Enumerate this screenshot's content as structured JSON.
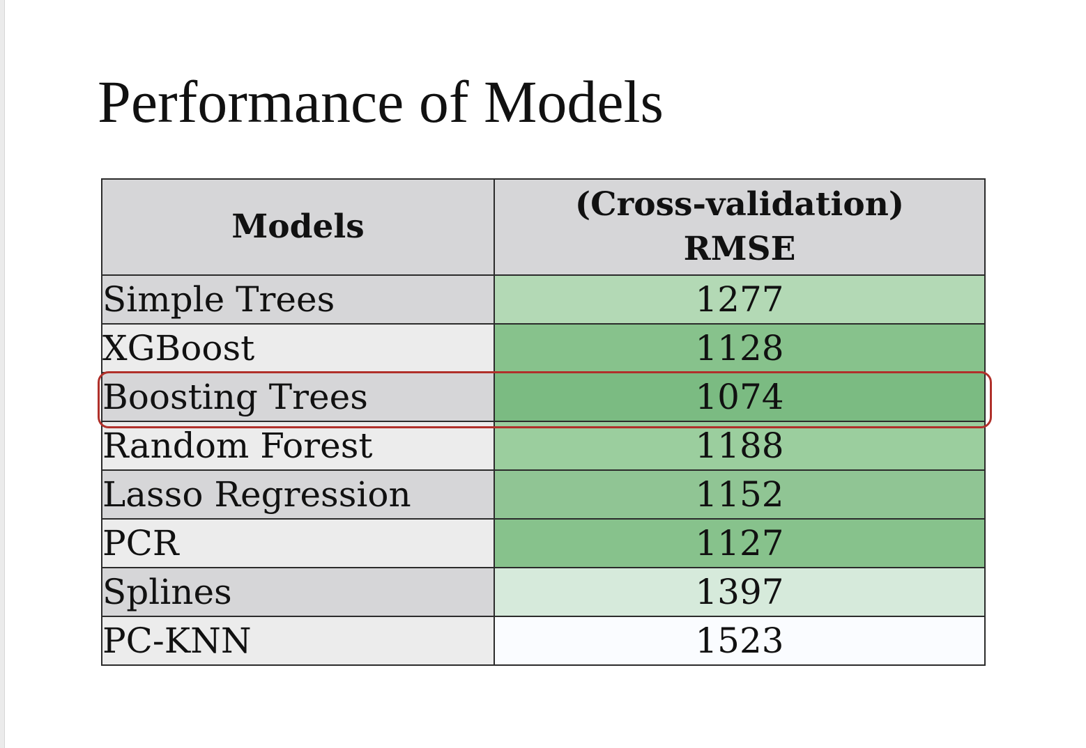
{
  "slide": {
    "title": "Performance of Models"
  },
  "table": {
    "headers": {
      "models": "Models",
      "rmse_line1": "(Cross-validation)",
      "rmse_line2": "RMSE"
    },
    "rows": [
      {
        "model": "Simple Trees",
        "rmse": "1277",
        "color": "#b3d9b5",
        "label_shade": "dark"
      },
      {
        "model": "XGBoost",
        "rmse": "1128",
        "color": "#87c28c",
        "label_shade": "light"
      },
      {
        "model": "Boosting Trees",
        "rmse": "1074",
        "color": "#7bbb82",
        "label_shade": "dark"
      },
      {
        "model": "Random Forest",
        "rmse": "1188",
        "color": "#9bce9e",
        "label_shade": "light"
      },
      {
        "model": "Lasso Regression",
        "rmse": "1152",
        "color": "#90c594",
        "label_shade": "dark"
      },
      {
        "model": "PCR",
        "rmse": "1127",
        "color": "#87c28c",
        "label_shade": "light"
      },
      {
        "model": "Splines",
        "rmse": "1397",
        "color": "#d6eadb",
        "label_shade": "dark"
      },
      {
        "model": "PC-KNN",
        "rmse": "1523",
        "color": "#fafcff",
        "label_shade": "light"
      }
    ],
    "highlighted_row": "Boosting Trees",
    "highlight_color": "#b0302a"
  }
}
